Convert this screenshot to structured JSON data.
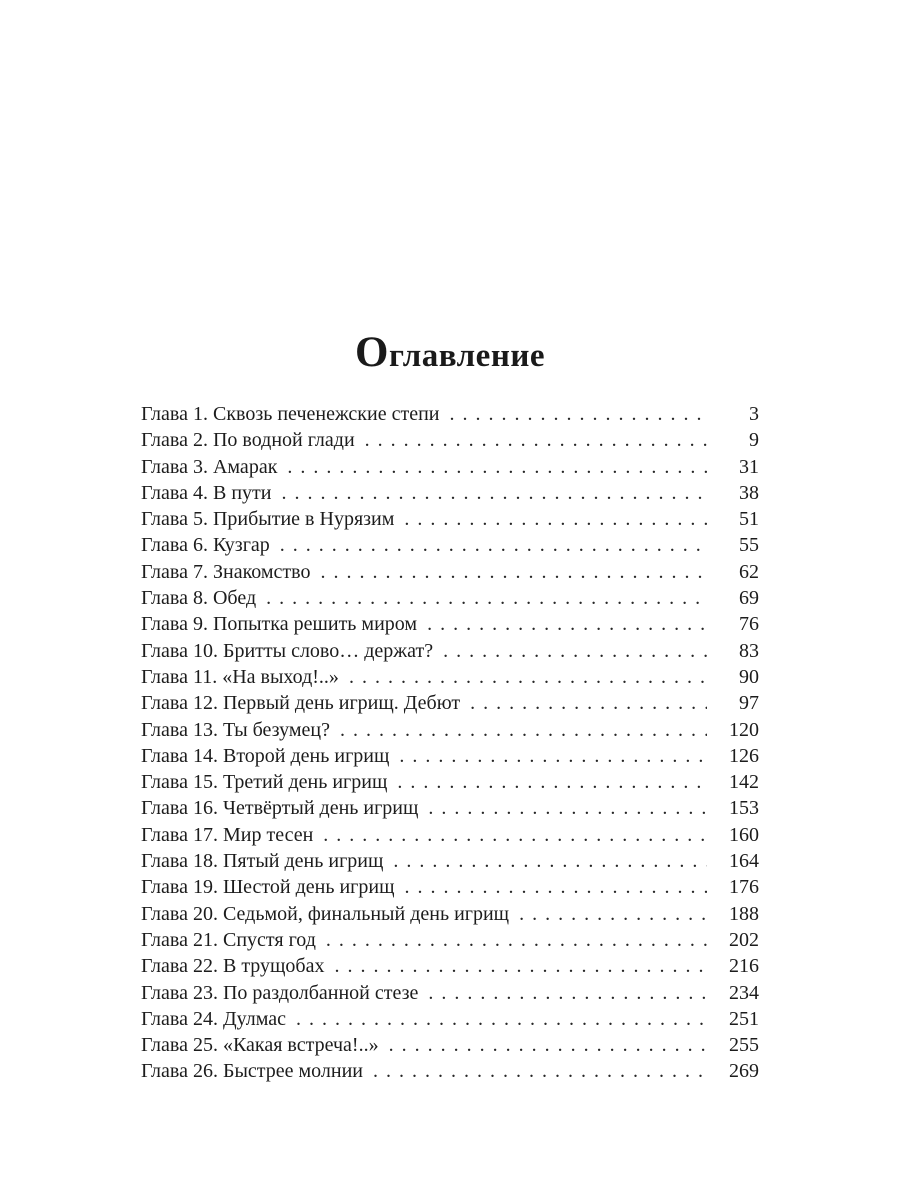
{
  "toc": {
    "title": "Оглавление",
    "entries": [
      {
        "label": "Глава 1. Сквозь печенежские степи",
        "page": "3"
      },
      {
        "label": "Глава 2. По водной глади",
        "page": "9"
      },
      {
        "label": "Глава 3. Амарак",
        "page": "31"
      },
      {
        "label": "Глава 4. В пути",
        "page": "38"
      },
      {
        "label": "Глава 5. Прибытие в Нурязим",
        "page": "51"
      },
      {
        "label": "Глава 6. Кузгар",
        "page": "55"
      },
      {
        "label": "Глава 7. Знакомство",
        "page": "62"
      },
      {
        "label": "Глава 8. Обед",
        "page": "69"
      },
      {
        "label": "Глава 9. Попытка решить миром",
        "page": "76"
      },
      {
        "label": "Глава 10. Бритты слово… держат?",
        "page": "83"
      },
      {
        "label": "Глава 11. «На выход!..»",
        "page": "90"
      },
      {
        "label": "Глава 12. Первый день игрищ. Дебют",
        "page": "97"
      },
      {
        "label": "Глава 13. Ты безумец?",
        "page": "120"
      },
      {
        "label": "Глава 14. Второй день игрищ",
        "page": "126"
      },
      {
        "label": "Глава 15. Третий день игрищ",
        "page": "142"
      },
      {
        "label": "Глава 16. Четвёртый день игрищ",
        "page": "153"
      },
      {
        "label": "Глава 17. Мир тесен",
        "page": "160"
      },
      {
        "label": "Глава 18. Пятый день игрищ",
        "page": "164"
      },
      {
        "label": "Глава 19. Шестой день игрищ",
        "page": "176"
      },
      {
        "label": "Глава 20. Седьмой, финальный день игрищ",
        "page": "188"
      },
      {
        "label": "Глава 21. Спустя год",
        "page": "202"
      },
      {
        "label": "Глава 22. В трущобах",
        "page": "216"
      },
      {
        "label": "Глава 23. По раздолбанной стезе",
        "page": "234"
      },
      {
        "label": "Глава 24. Дулмас",
        "page": "251"
      },
      {
        "label": "Глава 25. «Какая встреча!..»",
        "page": "255"
      },
      {
        "label": "Глава 26. Быстрее молнии",
        "page": "269"
      }
    ]
  }
}
